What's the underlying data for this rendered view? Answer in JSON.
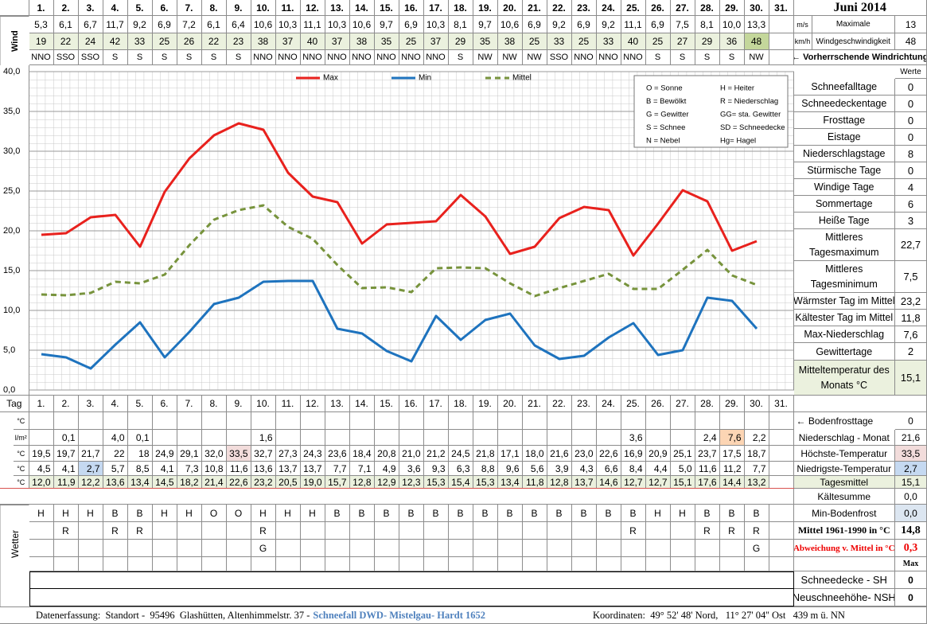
{
  "title": "Juni 2014",
  "days": [
    "1.",
    "2.",
    "3.",
    "4.",
    "5.",
    "6.",
    "7.",
    "8.",
    "9.",
    "10.",
    "11.",
    "12.",
    "13.",
    "14.",
    "15.",
    "16.",
    "17.",
    "18.",
    "19.",
    "20.",
    "21.",
    "22.",
    "23.",
    "24.",
    "25.",
    "26.",
    "27.",
    "28.",
    "29.",
    "30.",
    "31."
  ],
  "wind": {
    "label": "Wind",
    "ms_unit": "m/s",
    "kmh_unit": "km/h",
    "ms": [
      "5,3",
      "6,1",
      "6,7",
      "11,7",
      "9,2",
      "6,9",
      "7,2",
      "6,1",
      "6,4",
      "10,6",
      "10,3",
      "11,1",
      "10,3",
      "10,6",
      "9,7",
      "6,9",
      "10,3",
      "8,1",
      "9,7",
      "10,6",
      "6,9",
      "9,2",
      "6,9",
      "9,2",
      "11,1",
      "6,9",
      "7,5",
      "8,1",
      "10,0",
      "13,3"
    ],
    "kmh": [
      19,
      22,
      24,
      42,
      33,
      25,
      26,
      22,
      23,
      38,
      37,
      40,
      37,
      38,
      35,
      25,
      37,
      29,
      35,
      38,
      25,
      33,
      25,
      33,
      40,
      25,
      27,
      29,
      36,
      48
    ],
    "direction": [
      "NNO",
      "SSO",
      "SSO",
      "S",
      "S",
      "S",
      "S",
      "S",
      "S",
      "NNO",
      "NNO",
      "NNO",
      "NNO",
      "NNO",
      "NNO",
      "NNO",
      "NNO",
      "S",
      "NW",
      "NW",
      "NW",
      "SSO",
      "NNO",
      "NNO",
      "NNO",
      "S",
      "S",
      "S",
      "S",
      "NW"
    ],
    "max_label": [
      "Maximale",
      "Windgeschwindigkeit"
    ],
    "max_ms": 13,
    "max_kmh": 48,
    "direction_label": "← Vorherrschende Windrichtung"
  },
  "chart_data": {
    "type": "line",
    "ylim": [
      0,
      40
    ],
    "yticks": [
      {
        "value": 0,
        "label": "0,0"
      },
      {
        "value": 5,
        "label": "5,0"
      },
      {
        "value": 10,
        "label": "10,0"
      },
      {
        "value": 15,
        "label": "15,0"
      },
      {
        "value": 20,
        "label": "20,0"
      },
      {
        "value": 25,
        "label": "25,0"
      },
      {
        "value": 30,
        "label": "30,0"
      },
      {
        "value": 35,
        "label": "35,0"
      },
      {
        "value": 40,
        "label": "40,0"
      }
    ],
    "grid": true,
    "series": [
      {
        "name": "Max",
        "color": "#e8211d",
        "style": "solid",
        "values": [
          19.5,
          19.7,
          21.7,
          22,
          18,
          24.9,
          29.1,
          32.0,
          33.5,
          32.7,
          27.3,
          24.3,
          23.6,
          18.4,
          20.8,
          21.0,
          21.2,
          24.5,
          21.8,
          17.1,
          18.0,
          21.6,
          23.0,
          22.6,
          16.9,
          20.9,
          25.1,
          23.7,
          17.5,
          18.7
        ],
        "value_labels": [
          "19,5",
          "19,7",
          "21,7",
          "22",
          "18",
          "24,9",
          "29,1",
          "32,0",
          "33,5",
          "32,7",
          "27,3",
          "24,3",
          "23,6",
          "18,4",
          "20,8",
          "21,0",
          "21,2",
          "24,5",
          "21,8",
          "17,1",
          "18,0",
          "21,6",
          "23,0",
          "22,6",
          "16,9",
          "20,9",
          "25,1",
          "23,7",
          "17,5",
          "18,7"
        ]
      },
      {
        "name": "Min",
        "color": "#1e73be",
        "style": "solid",
        "values": [
          4.5,
          4.1,
          2.7,
          5.7,
          8.5,
          4.1,
          7.3,
          10.8,
          11.6,
          13.6,
          13.7,
          13.7,
          7.7,
          7.1,
          4.9,
          3.6,
          9.3,
          6.3,
          8.8,
          9.6,
          5.6,
          3.9,
          4.3,
          6.6,
          8.4,
          4.4,
          5.0,
          11.6,
          11.2,
          7.7
        ],
        "value_labels": [
          "4,5",
          "4,1",
          "2,7",
          "5,7",
          "8,5",
          "4,1",
          "7,3",
          "10,8",
          "11,6",
          "13,6",
          "13,7",
          "13,7",
          "7,7",
          "7,1",
          "4,9",
          "3,6",
          "9,3",
          "6,3",
          "8,8",
          "9,6",
          "5,6",
          "3,9",
          "4,3",
          "6,6",
          "8,4",
          "4,4",
          "5,0",
          "11,6",
          "11,2",
          "7,7"
        ]
      },
      {
        "name": "Mittel",
        "color": "#77933c",
        "style": "dashed",
        "values": [
          12.0,
          11.9,
          12.2,
          13.6,
          13.4,
          14.5,
          18.2,
          21.4,
          22.6,
          23.2,
          20.5,
          19.0,
          15.7,
          12.8,
          12.9,
          12.3,
          15.3,
          15.4,
          15.3,
          13.4,
          11.8,
          12.8,
          13.7,
          14.6,
          12.7,
          12.7,
          15.1,
          17.6,
          14.4,
          13.2
        ],
        "value_labels": [
          "12,0",
          "11,9",
          "12,2",
          "13,6",
          "13,4",
          "14,5",
          "18,2",
          "21,4",
          "22,6",
          "23,2",
          "20,5",
          "19,0",
          "15,7",
          "12,8",
          "12,9",
          "12,3",
          "15,3",
          "15,4",
          "15,3",
          "13,4",
          "11,8",
          "12,8",
          "13,7",
          "14,6",
          "12,7",
          "12,7",
          "15,1",
          "17,6",
          "14,4",
          "13,2"
        ]
      }
    ]
  },
  "weather_legend": [
    "O = Sonne",
    "H = Heiter",
    "B = Bewölkt",
    "R = Niederschlag",
    "G = Gewitter",
    "GG= sta. Gewitter",
    "S = Schnee",
    "SD = Schneedecke",
    "N = Nebel",
    "Hg= Hagel"
  ],
  "stats": {
    "header": "Werte",
    "rows": [
      {
        "label": "Schneefalltage",
        "value": 0
      },
      {
        "label": "Schneedeckentage",
        "value": 0
      },
      {
        "label": "Frosttage",
        "value": 0
      },
      {
        "label": "Eistage",
        "value": 0
      },
      {
        "label": "Niederschlagstage",
        "value": 8
      },
      {
        "label": "Stürmische Tage",
        "value": 0
      },
      {
        "label": "Windige Tage",
        "value": 4
      },
      {
        "label": "Sommertage",
        "value": 6
      },
      {
        "label": "Heiße Tage",
        "value": 3
      },
      {
        "label": "Mittleres Tagesmaximum",
        "value": "22,7"
      },
      {
        "label": "Mittleres Tagesminimum",
        "value": "7,5"
      },
      {
        "label": "Wärmster Tag im Mittel",
        "value": "23,2"
      },
      {
        "label": "Kältester Tag im Mittel",
        "value": "11,8"
      },
      {
        "label": "Max-Niederschlag",
        "value": "7,6"
      },
      {
        "label": "Gewittertage",
        "value": 2
      },
      {
        "label": "Mitteltemperatur des Monats °C",
        "value": "15,1"
      }
    ]
  },
  "bottom": {
    "tag_label": "Tag",
    "units": [
      "°C",
      "l/m²",
      "°C",
      "°C",
      "°C"
    ],
    "precip": [
      null,
      "0,1",
      null,
      "4,0",
      "0,1",
      null,
      null,
      null,
      null,
      "1,6",
      null,
      null,
      null,
      null,
      null,
      null,
      null,
      null,
      null,
      null,
      null,
      null,
      null,
      null,
      "3,6",
      null,
      null,
      "2,4",
      "7,6",
      "2,2"
    ],
    "weather_label": "Wetter",
    "weather": [
      [
        "H",
        "H",
        "H",
        "B",
        "B",
        "H",
        "H",
        "O",
        "O",
        "H",
        "H",
        "H",
        "B",
        "B",
        "B",
        "B",
        "B",
        "B",
        "B",
        "B",
        "B",
        "B",
        "B",
        "B",
        "B",
        "H",
        "H",
        "B",
        "B",
        "B"
      ],
      [
        null,
        "R",
        null,
        "R",
        "R",
        null,
        null,
        null,
        null,
        "R",
        null,
        null,
        null,
        null,
        null,
        null,
        null,
        null,
        null,
        null,
        null,
        null,
        null,
        null,
        "R",
        null,
        null,
        "R",
        "R",
        "R"
      ],
      [
        null,
        null,
        null,
        null,
        null,
        null,
        null,
        null,
        null,
        "G",
        null,
        null,
        null,
        null,
        null,
        null,
        null,
        null,
        null,
        null,
        null,
        null,
        null,
        null,
        null,
        null,
        null,
        null,
        null,
        "G"
      ]
    ],
    "summary": [
      {
        "label": "← Bodenfrosttage",
        "value": 0
      },
      {
        "label": "Niederschlag - Monat",
        "value": "21,6"
      },
      {
        "label": "Höchste-Temperatur",
        "value": "33,5"
      },
      {
        "label": "Niedrigste-Temperatur",
        "value": "2,7"
      },
      {
        "label": "Tagesmittel",
        "value": "15,1"
      },
      {
        "label": "Kältesumme",
        "value": "0,0"
      },
      {
        "label": "Min-Bodenfrost",
        "value": "0,0"
      },
      {
        "label": "Mittel 1961-1990 in °C",
        "value": "14,8"
      },
      {
        "label": "Abweichung v. Mittel in °C",
        "value": "0,3"
      },
      {
        "label": "Schneedecke - SH",
        "value": 0
      },
      {
        "label": "Neuschneehöhe- NSH",
        "value": 0
      }
    ],
    "max_header": "Max"
  },
  "footer": {
    "left": "Datenerfassung:  Standort -  95496  Glashütten, Altenhimmelstr. 37 -",
    "link": "Schneefall DWD- Mistelgau- Hardt 1652",
    "right": "Koordinaten:  49° 52' 48' Nord,   11° 27' 04'' Ost   439 m ü. NN"
  }
}
